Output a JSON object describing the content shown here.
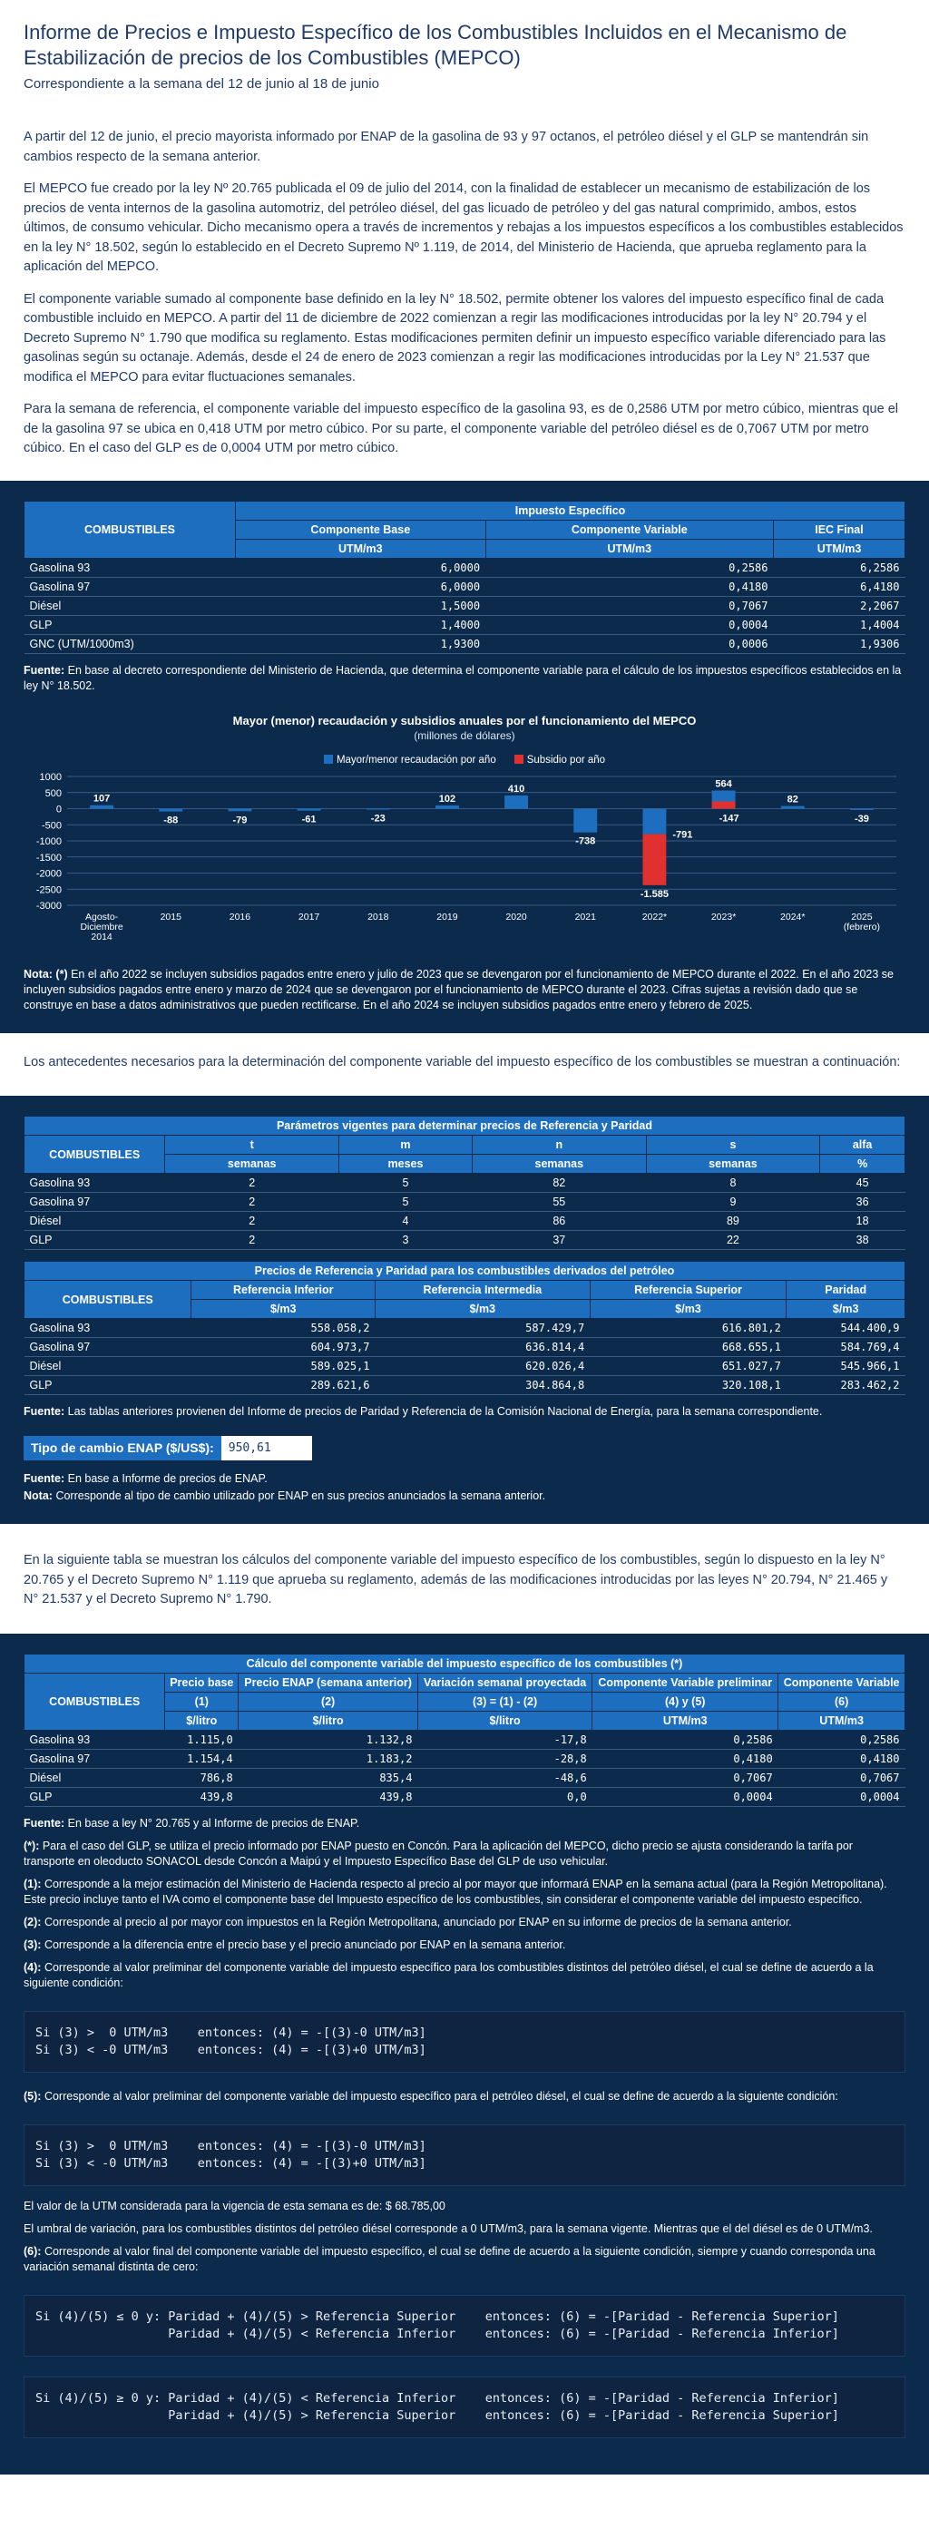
{
  "header": {
    "title": "Informe de Precios e Impuesto Específico de los Combustibles Incluidos en el Mecanismo de Estabilización de precios de los Combustibles (MEPCO)",
    "subtitle": "Correspondiente a la semana del 12 de junio al 18 de junio"
  },
  "intro": [
    "A partir del 12 de junio, el precio mayorista informado por ENAP de la gasolina de 93 y 97 octanos, el petróleo diésel y el GLP se mantendrán sin cambios respecto de la semana anterior.",
    "El MEPCO fue creado por la ley Nº 20.765 publicada el 09 de julio del 2014, con la finalidad de establecer un mecanismo de estabilización de los precios de venta internos de la gasolina automotriz, del petróleo diésel, del gas licuado de petróleo y del gas natural comprimido, ambos, estos últimos, de consumo vehicular. Dicho mecanismo opera a través de incrementos y rebajas a los impuestos específicos a los combustibles establecidos en la ley N° 18.502, según lo establecido en el Decreto Supremo Nº 1.119, de 2014, del Ministerio de Hacienda, que aprueba reglamento para la aplicación del MEPCO.",
    "El componente variable sumado al componente base definido en la ley N° 18.502, permite obtener los valores del impuesto específico final de cada combustible incluido en MEPCO. A partir del 11 de diciembre de 2022 comienzan a regir las modificaciones introducidas por la ley N° 20.794 y el Decreto Supremo N° 1.790 que modifica su reglamento. Estas modificaciones permiten definir un impuesto específico variable diferenciado para las gasolinas según su octanaje. Además, desde el 24 de enero de 2023 comienzan a regir las modificaciones introducidas por la Ley N° 21.537 que modifica el MEPCO para evitar fluctuaciones semanales.",
    "Para la semana de referencia, el componente variable del impuesto específico de la gasolina 93, es de 0,2586 UTM por metro cúbico, mientras que el de la gasolina 97 se ubica en 0,418 UTM por metro cúbico. Por su parte, el componente variable del petróleo diésel es de 0,7067 UTM por metro cúbico. En el caso del GLP es de 0,0004 UTM por metro cúbico."
  ],
  "iec_table": {
    "caption": "Impuesto Específico",
    "col_main": "COMBUSTIBLES",
    "cols": [
      "Componente Base",
      "Componente Variable",
      "IEC Final"
    ],
    "units": [
      "UTM/m3",
      "UTM/m3",
      "UTM/m3"
    ],
    "rows": [
      [
        "Gasolina 93",
        "6,0000",
        "0,2586",
        "6,2586"
      ],
      [
        "Gasolina 97",
        "6,0000",
        "0,4180",
        "6,4180"
      ],
      [
        "Diésel",
        "1,5000",
        "0,7067",
        "2,2067"
      ],
      [
        "GLP",
        "1,4000",
        "0,0004",
        "1,4004"
      ],
      [
        "GNC (UTM/1000m3)",
        "1,9300",
        "0,0006",
        "1,9306"
      ]
    ],
    "source_label": "Fuente:",
    "source": "En base al decreto correspondiente del Ministerio de Hacienda, que determina el componente variable para el cálculo de los impuestos específicos establecidos en la ley N° 18.502."
  },
  "chart_data": {
    "type": "bar",
    "title": "Mayor (menor) recaudación y subsidios anuales por el funcionamiento del MEPCO",
    "subtitle": "(millones de dólares)",
    "categories": [
      "Agosto-Diciembre 2014",
      "2015",
      "2016",
      "2017",
      "2018",
      "2019",
      "2020",
      "2021",
      "2022*",
      "2023*",
      "2024*",
      "2025 (febrero)"
    ],
    "category_lines": [
      [
        "Agosto-",
        "Diciembre",
        "2014"
      ],
      [
        "2015"
      ],
      [
        "2016"
      ],
      [
        "2017"
      ],
      [
        "2018"
      ],
      [
        "2019"
      ],
      [
        "2020"
      ],
      [
        "2021"
      ],
      [
        "2022*"
      ],
      [
        "2023*"
      ],
      [
        "2024*"
      ],
      [
        "2025",
        "(febrero)"
      ]
    ],
    "series": [
      {
        "name": "Mayor/menor recaudación por año",
        "color": "#1e6ec0",
        "values": [
          107,
          -88,
          -79,
          -61,
          -23,
          102,
          410,
          -738,
          -791,
          564,
          82,
          -39
        ]
      },
      {
        "name": "Subsidio por año",
        "color": "#e03030",
        "values": [
          0,
          0,
          0,
          0,
          0,
          0,
          0,
          0,
          -1585,
          -147,
          0,
          0
        ]
      }
    ],
    "labels": [
      "107",
      "-88",
      "-79",
      "-61",
      "-23",
      "102",
      "410",
      "-738",
      "-791",
      "564",
      "82",
      "-39"
    ],
    "subsidy_labels": [
      "",
      "",
      "",
      "",
      "",
      "",
      "",
      "",
      "-1.585",
      "-147",
      "",
      ""
    ],
    "yticks": [
      1000,
      500,
      0,
      -500,
      -1000,
      -1500,
      -2000,
      -2500,
      -3000
    ],
    "ylim": [
      -3000,
      1000
    ],
    "grid": true,
    "legend": "top-center"
  },
  "chart_note": {
    "label": "Nota: (*)",
    "text": "En el año 2022 se incluyen subsidios pagados entre enero y julio de 2023 que se devengaron por el funcionamiento de MEPCO durante el 2022. En el año 2023 se incluyen subsidios pagados entre enero y marzo de 2024 que se devengaron por el funcionamiento de MEPCO durante el 2023. Cifras sujetas a revisión dado que se construye en base a datos administrativos que pueden rectificarse. En el año 2024 se incluyen subsidios pagados entre enero y febrero de 2025."
  },
  "antecedentes": "Los antecedentes necesarios para la determinación del componente variable del impuesto específico de los combustibles se muestran a continuación:",
  "param_table": {
    "caption": "Parámetros vigentes para determinar precios de Referencia y Paridad",
    "col_main": "COMBUSTIBLES",
    "cols": [
      "t",
      "m",
      "n",
      "s",
      "alfa"
    ],
    "units": [
      "semanas",
      "meses",
      "semanas",
      "semanas",
      "%"
    ],
    "rows": [
      [
        "Gasolina 93",
        "2",
        "5",
        "82",
        "8",
        "45"
      ],
      [
        "Gasolina 97",
        "2",
        "5",
        "55",
        "9",
        "36"
      ],
      [
        "Diésel",
        "2",
        "4",
        "86",
        "89",
        "18"
      ],
      [
        "GLP",
        "2",
        "3",
        "37",
        "22",
        "38"
      ]
    ]
  },
  "ref_table": {
    "caption": "Precios de Referencia y Paridad para los combustibles derivados del petróleo",
    "col_main": "COMBUSTIBLES",
    "cols": [
      "Referencia Inferior",
      "Referencia Intermedia",
      "Referencia Superior",
      "Paridad"
    ],
    "units": [
      "$/m3",
      "$/m3",
      "$/m3",
      "$/m3"
    ],
    "rows": [
      [
        "Gasolina 93",
        "558.058,2",
        "587.429,7",
        "616.801,2",
        "544.400,9"
      ],
      [
        "Gasolina 97",
        "604.973,7",
        "636.814,4",
        "668.655,1",
        "584.769,4"
      ],
      [
        "Diésel",
        "589.025,1",
        "620.026,4",
        "651.027,7",
        "545.966,1"
      ],
      [
        "GLP",
        "289.621,6",
        "304.864,8",
        "320.108,1",
        "283.462,2"
      ]
    ],
    "source_label": "Fuente:",
    "source": "Las tablas anteriores provienen del Informe de precios de Paridad y Referencia de la Comisión Nacional de Energía, para la semana correspondiente."
  },
  "fx": {
    "label": "Tipo de cambio ENAP ($/US$):",
    "value": "950,61",
    "source_label": "Fuente:",
    "source": "En base a Informe de precios de ENAP.",
    "note_label": "Nota:",
    "note": "Corresponde al tipo de cambio utilizado por ENAP en sus precios anunciados la semana anterior."
  },
  "calc_intro": "En la siguiente tabla se muestran los cálculos del componente variable del impuesto específico de los combustibles, según lo dispuesto en la ley N° 20.765 y el Decreto Supremo N° 1.119 que aprueba su reglamento, además de las modificaciones introducidas por las leyes N° 20.794, N° 21.465 y N° 21.537 y el Decreto Supremo N° 1.790.",
  "calc_table": {
    "caption": "Cálculo del componente variable del impuesto específico de los combustibles (*)",
    "col_main": "COMBUSTIBLES",
    "cols": [
      "Precio base",
      "Precio ENAP (semana anterior)",
      "Variación semanal proyectada",
      "Componente Variable preliminar",
      "Componente Variable"
    ],
    "refs": [
      "(1)",
      "(2)",
      "(3) = (1) - (2)",
      "(4) y (5)",
      "(6)"
    ],
    "units": [
      "$/litro",
      "$/litro",
      "$/litro",
      "UTM/m3",
      "UTM/m3"
    ],
    "rows": [
      [
        "Gasolina 93",
        "1.115,0",
        "1.132,8",
        "-17,8",
        "0,2586",
        "0,2586"
      ],
      [
        "Gasolina 97",
        "1.154,4",
        "1.183,2",
        "-28,8",
        "0,4180",
        "0,4180"
      ],
      [
        "Diésel",
        "786,8",
        "835,4",
        "-48,6",
        "0,7067",
        "0,7067"
      ],
      [
        "GLP",
        "439,8",
        "439,8",
        "0,0",
        "0,0004",
        "0,0004"
      ]
    ],
    "source_label": "Fuente:",
    "source": "En base a ley N° 20.765 y al Informe de precios de ENAP."
  },
  "notes": [
    {
      "label": "(*):",
      "text": "Para el caso del GLP, se utiliza el precio informado por ENAP puesto en Concón. Para la aplicación del MEPCO, dicho precio se ajusta considerando la tarifa por transporte en oleoducto SONACOL desde Concón a Maipú y el Impuesto Específico Base del GLP de uso vehicular."
    },
    {
      "label": "(1):",
      "text": "Corresponde a la mejor estimación del Ministerio de Hacienda respecto al precio al por mayor que informará ENAP en la semana actual (para la Región Metropolitana). Este precio incluye tanto el IVA como el componente base del Impuesto específico de los combustibles, sin considerar el componente variable del impuesto específico."
    },
    {
      "label": "(2):",
      "text": "Corresponde al precio al por mayor con impuestos en la Región Metropolitana, anunciado por ENAP en su informe de precios de la semana anterior."
    },
    {
      "label": "(3):",
      "text": "Corresponde a la diferencia entre el precio base y el precio anunciado por ENAP en la semana anterior."
    },
    {
      "label": "(4):",
      "text": "Corresponde al valor preliminar del componente variable del impuesto específico para los combustibles distintos del petróleo diésel, el cual se define de acuerdo a la siguiente condición:"
    }
  ],
  "code1": "Si (3) >  0 UTM/m3    entonces: (4) = -[(3)-0 UTM/m3]\nSi (3) < -0 UTM/m3    entonces: (4) = -[(3)+0 UTM/m3]",
  "note5": {
    "label": "(5):",
    "text": "Corresponde al valor preliminar del componente variable del impuesto específico para el petróleo diésel, el cual se define de acuerdo a la siguiente condición:"
  },
  "code2": "Si (3) >  0 UTM/m3    entonces: (4) = -[(3)-0 UTM/m3]\nSi (3) < -0 UTM/m3    entonces: (4) = -[(3)+0 UTM/m3]",
  "utm": "El valor de la UTM considerada para la vigencia de esta semana es de: $ 68.785,00",
  "umbral": "El umbral de variación, para los combustibles distintos del petróleo diésel corresponde a 0 UTM/m3, para la semana vigente. Mientras que el del diésel es de 0 UTM/m3.",
  "note6": {
    "label": "(6):",
    "text": "Corresponde al valor final del componente variable del impuesto específico, el cual se define de acuerdo a la siguiente condición, siempre y cuando corresponda una variación semanal distinta de cero:"
  },
  "code3": "Si (4)/(5) ≤ 0 y: Paridad + (4)/(5) > Referencia Superior    entonces: (6) = -[Paridad - Referencia Superior]\n                  Paridad + (4)/(5) < Referencia Inferior    entonces: (6) = -[Paridad - Referencia Inferior]",
  "code4": "Si (4)/(5) ≥ 0 y: Paridad + (4)/(5) < Referencia Inferior    entonces: (6) = -[Paridad - Referencia Inferior]\n                  Paridad + (4)/(5) > Referencia Superior    entonces: (6) = -[Paridad - Referencia Superior]"
}
